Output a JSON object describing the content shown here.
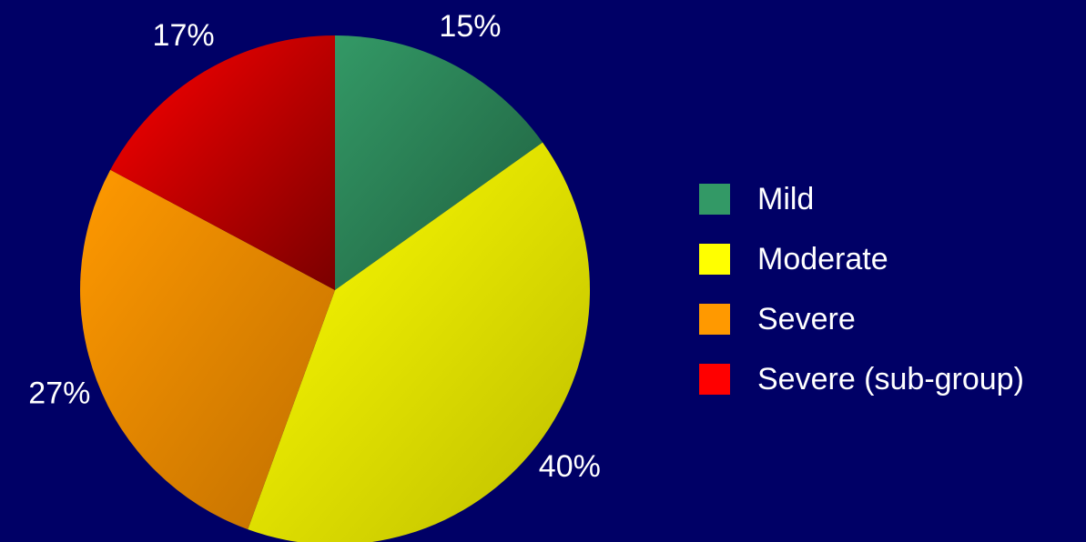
{
  "chart_data": {
    "type": "pie",
    "title": "",
    "start_angle_deg": 0,
    "direction": "clockwise",
    "slices": [
      {
        "label": "Mild",
        "value": 15,
        "display": "15%",
        "color": "#339966",
        "shade": "#1f5f3f"
      },
      {
        "label": "Moderate",
        "value": 40,
        "display": "40%",
        "color": "#ffff00",
        "shade": "#bdbd00"
      },
      {
        "label": "Severe",
        "value": 27,
        "display": "27%",
        "color": "#ff9900",
        "shade": "#c06f00"
      },
      {
        "label": "Severe (sub-group)",
        "value": 17,
        "display": "17%",
        "color": "#ff0000",
        "shade": "#7a0000"
      }
    ],
    "legend_position": "right"
  },
  "legend": {
    "items": [
      {
        "label": "Mild",
        "color": "#339966"
      },
      {
        "label": "Moderate",
        "color": "#ffff00"
      },
      {
        "label": "Severe",
        "color": "#ff9900"
      },
      {
        "label": "Severe (sub-group)",
        "color": "#ff0000"
      }
    ]
  },
  "colors": {
    "background": "#000066",
    "text": "#ffffff"
  }
}
